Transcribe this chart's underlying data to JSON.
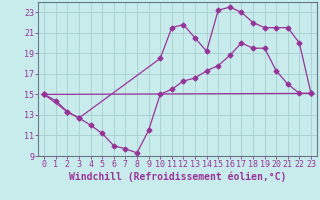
{
  "xlabel": "Windchill (Refroidissement éolien,°C)",
  "bg_color": "#c8ecec",
  "grid_color": "#a8d0d0",
  "line_color": "#993399",
  "xlim": [
    -0.5,
    23.5
  ],
  "ylim": [
    9,
    24
  ],
  "xticks": [
    0,
    1,
    2,
    3,
    4,
    5,
    6,
    7,
    8,
    9,
    10,
    11,
    12,
    13,
    14,
    15,
    16,
    17,
    18,
    19,
    20,
    21,
    22,
    23
  ],
  "yticks": [
    9,
    11,
    13,
    15,
    17,
    19,
    21,
    23
  ],
  "line1_x": [
    0,
    1,
    2,
    3,
    4,
    5,
    6,
    7,
    8,
    9,
    10,
    11,
    12,
    13,
    14,
    15,
    16,
    17,
    18,
    19,
    20,
    21,
    22,
    23
  ],
  "line1_y": [
    15,
    14.4,
    13.3,
    12.7,
    12.0,
    11.2,
    10.0,
    9.7,
    9.3,
    11.5,
    15.0,
    15.5,
    16.3,
    16.6,
    17.3,
    17.8,
    18.8,
    20.0,
    19.5,
    19.5,
    17.3,
    16.0,
    15.1,
    15.1
  ],
  "line2_x": [
    0,
    2,
    3,
    10,
    11,
    12,
    13,
    14,
    15,
    16,
    17,
    18,
    19,
    20,
    21,
    22,
    23
  ],
  "line2_y": [
    15,
    13.3,
    12.7,
    18.5,
    21.5,
    21.8,
    20.5,
    19.2,
    23.2,
    23.5,
    23.0,
    22.0,
    21.5,
    21.5,
    21.5,
    20.0,
    15.1
  ],
  "line3_x": [
    0,
    23
  ],
  "line3_y": [
    15,
    15.1
  ],
  "marker": "D",
  "marker_size": 2.5,
  "tick_fontsize": 6,
  "label_fontsize": 7
}
